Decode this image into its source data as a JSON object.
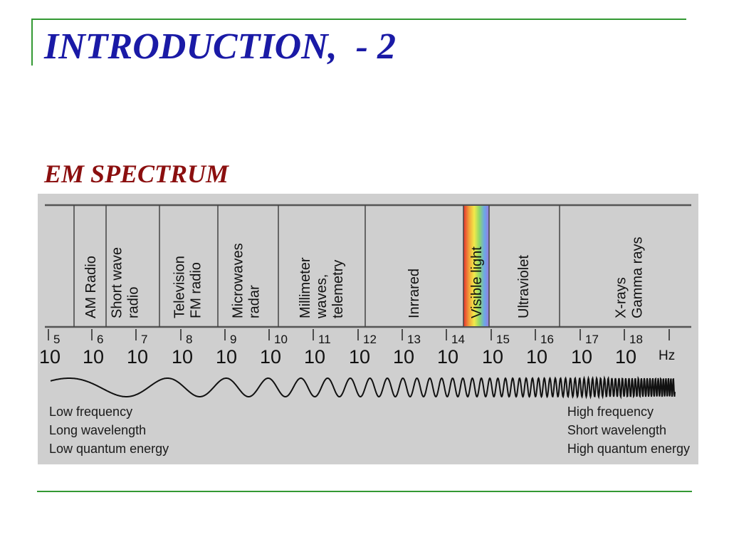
{
  "slide": {
    "title": "INTRODUCTION,  - 2",
    "section_title": "EM SPECTRUM"
  },
  "figure": {
    "bands": [
      {
        "lines": [
          "AM Radio"
        ]
      },
      {
        "lines": [
          "Short wave",
          "radio"
        ]
      },
      {
        "lines": [
          "Television",
          "FM radio"
        ]
      },
      {
        "lines": [
          "Microwaves",
          "radar"
        ]
      },
      {
        "lines": [
          "Millimeter",
          "waves,",
          "telemetry"
        ]
      },
      {
        "lines": [
          "Inrrared"
        ]
      },
      {
        "lines": [
          "Visible light"
        ]
      },
      {
        "lines": [
          "Ultraviolet"
        ]
      },
      {
        "lines": [
          "X-rays",
          "Gamma rays"
        ]
      }
    ],
    "ticks": [
      {
        "base": "10",
        "exp": "5"
      },
      {
        "base": "10",
        "exp": "6"
      },
      {
        "base": "10",
        "exp": "7"
      },
      {
        "base": "10",
        "exp": "8"
      },
      {
        "base": "10",
        "exp": "9"
      },
      {
        "base": "10",
        "exp": "10"
      },
      {
        "base": "10",
        "exp": "11"
      },
      {
        "base": "10",
        "exp": "12"
      },
      {
        "base": "10",
        "exp": "13"
      },
      {
        "base": "10",
        "exp": "14"
      },
      {
        "base": "10",
        "exp": "15"
      },
      {
        "base": "10",
        "exp": "16"
      },
      {
        "base": "10",
        "exp": "17"
      },
      {
        "base": "10",
        "exp": "18"
      }
    ],
    "unit": "Hz",
    "low_end": [
      "Low frequency",
      "Long wavelength",
      "Low quantum energy"
    ],
    "high_end": [
      "High frequency",
      "Short wavelength",
      "High quantum energy"
    ],
    "colors": {
      "title": "#1a1aa6",
      "section": "#8b0f0f",
      "rule": "#339933",
      "panel": "#cfcfcf"
    }
  }
}
